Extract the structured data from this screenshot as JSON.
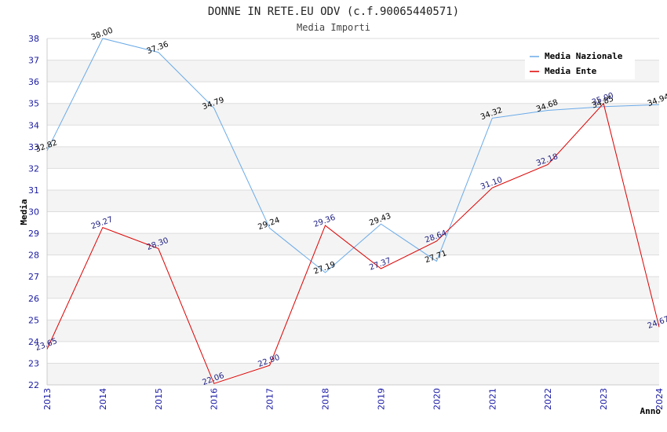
{
  "chart_data": {
    "type": "line",
    "title": "DONNE IN RETE.EU ODV (c.f.90065440571)",
    "subtitle": "Media Importi",
    "xlabel": "Anno",
    "ylabel": "Media",
    "ylim": [
      22,
      38
    ],
    "yticks": [
      22,
      23,
      24,
      25,
      26,
      27,
      28,
      29,
      30,
      31,
      32,
      33,
      34,
      35,
      36,
      37,
      38
    ],
    "x": [
      "2013",
      "2014",
      "2015",
      "2016",
      "2017",
      "2018",
      "2019",
      "2020",
      "2021",
      "2022",
      "2023",
      "2024"
    ],
    "grid": true,
    "legend_position": "top-right",
    "series": [
      {
        "name": "Media Nazionale",
        "color": "#6aaae8",
        "label_color": "#000000",
        "values": [
          32.82,
          38.0,
          37.36,
          34.79,
          29.24,
          27.19,
          29.43,
          27.71,
          34.32,
          34.68,
          34.85,
          34.94
        ],
        "labels": [
          "32.82",
          "38.00",
          "37.36",
          "34.79",
          "29.24",
          "27.19",
          "29.43",
          "27.71",
          "34.32",
          "34.68",
          "34.85",
          "34.94"
        ]
      },
      {
        "name": "Media Ente",
        "color": "#dd0000",
        "label_color": "#1a1a80",
        "values": [
          23.65,
          29.27,
          28.3,
          22.06,
          22.9,
          29.36,
          27.37,
          28.64,
          31.1,
          32.18,
          35.0,
          24.67
        ],
        "labels": [
          "23.65",
          "29.27",
          "28.30",
          "22.06",
          "22.90",
          "29.36",
          "27.37",
          "28.64",
          "31.10",
          "32.18",
          "35.00",
          "24.67"
        ]
      }
    ]
  }
}
